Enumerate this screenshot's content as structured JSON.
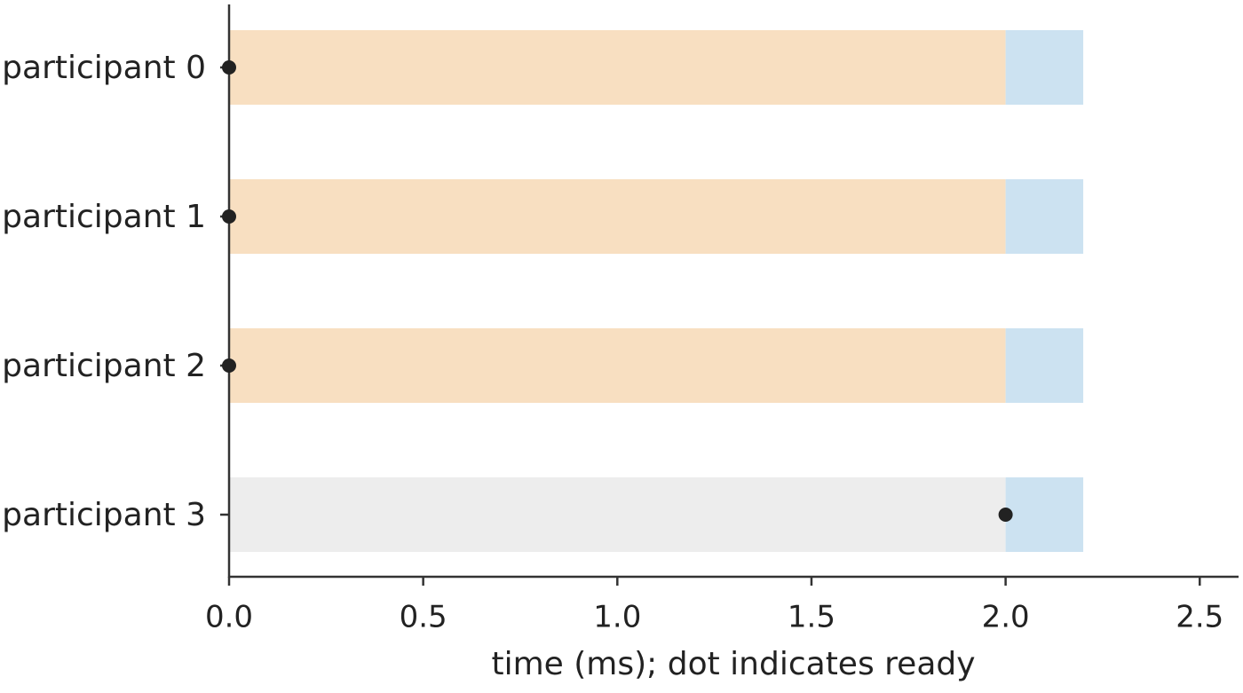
{
  "chart_data": {
    "type": "timeline",
    "categories": [
      "participant 0",
      "participant 1",
      "participant 2",
      "participant 3"
    ],
    "series": [
      {
        "colors": [
          "#f8dfc1",
          "#f8dfc1",
          "#f8dfc1",
          "#ededed"
        ],
        "values": [
          2.0,
          2.0,
          2.0,
          2.0
        ]
      },
      {
        "color": "#cce2f1",
        "values": [
          0.2,
          0.2,
          0.2,
          0.2
        ]
      }
    ],
    "markers": {
      "color": "#222222",
      "values": [
        0,
        0,
        0,
        2.0
      ]
    },
    "xlabel": "time (ms); dot indicates ready",
    "xlim": [
      0,
      2.6
    ],
    "xticks": [
      {
        "value": 0,
        "label": "0.0"
      },
      0.5,
      {
        "value": 1,
        "label": "1.0"
      },
      1.5,
      {
        "value": 2,
        "label": "2.0"
      },
      2.5
    ]
  }
}
